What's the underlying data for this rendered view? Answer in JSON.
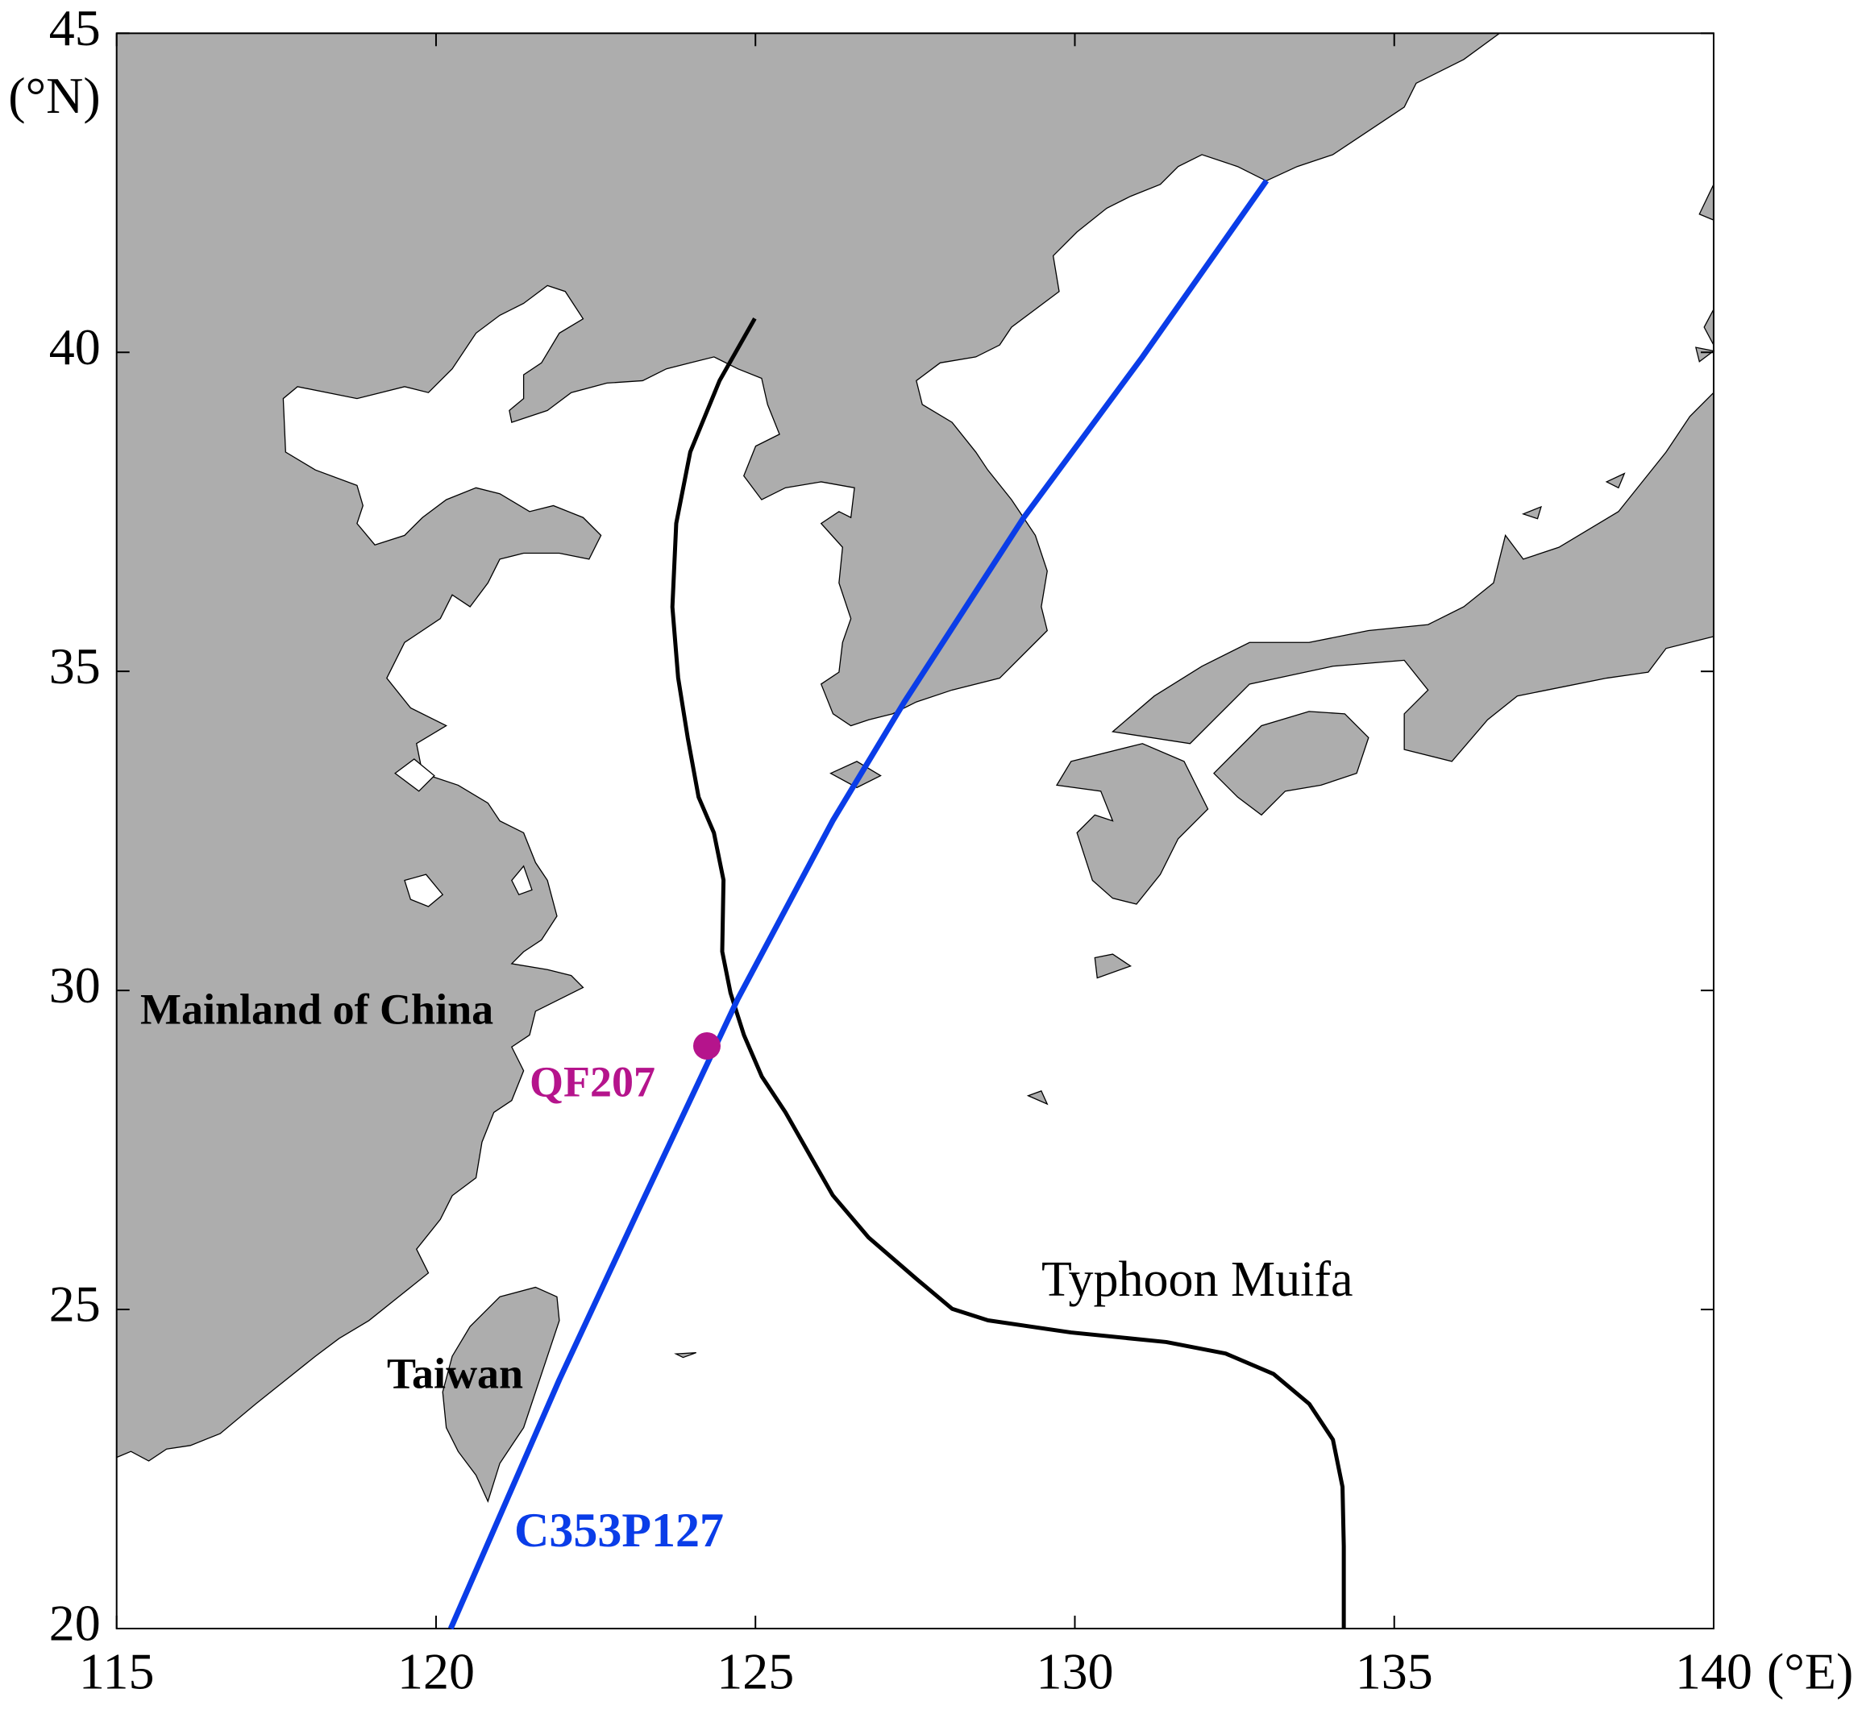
{
  "chart_data": {
    "type": "map",
    "xlim": [
      115,
      140
    ],
    "ylim": [
      20,
      45
    ],
    "xticks": [
      115,
      120,
      125,
      130,
      135,
      140
    ],
    "yticks": [
      20,
      25,
      30,
      35,
      40,
      45
    ],
    "xlabel": "(°E)",
    "ylabel": "(°N)",
    "series": [
      {
        "name": "Typhoon Muifa",
        "color": "#000000",
        "x": [
          124.99,
          124.44,
          123.98,
          123.76,
          123.7,
          123.79,
          123.94,
          124.11,
          124.35,
          124.5,
          124.48,
          124.61,
          124.82,
          125.1,
          125.47,
          125.84,
          126.21,
          126.77,
          127.52,
          128.08,
          128.64,
          129.94,
          131.43,
          132.36,
          133.11,
          133.67,
          134.04,
          134.19,
          134.21,
          134.21
        ],
        "y": [
          40.53,
          39.56,
          38.44,
          37.32,
          36.01,
          34.9,
          33.96,
          33.03,
          32.47,
          31.73,
          30.61,
          29.96,
          29.3,
          28.65,
          28.09,
          27.44,
          26.79,
          26.13,
          25.48,
          25.01,
          24.83,
          24.64,
          24.49,
          24.31,
          23.99,
          23.52,
          22.96,
          22.22,
          21.29,
          20.0
        ]
      },
      {
        "name": "C353P127",
        "color": "#0a3de8",
        "x": [
          120.23,
          121.93,
          123.23,
          124.72,
          126.21,
          127.33,
          129.2,
          131.06,
          133.0
        ],
        "y": [
          20.0,
          23.9,
          26.69,
          29.86,
          32.66,
          34.52,
          37.41,
          39.93,
          42.69
        ]
      }
    ],
    "points": [
      {
        "name": "QF207",
        "color": "#b5148c",
        "x": 124.24,
        "y": 29.13
      }
    ],
    "annotations": [
      "Mainland of China",
      "Taiwan"
    ]
  }
}
